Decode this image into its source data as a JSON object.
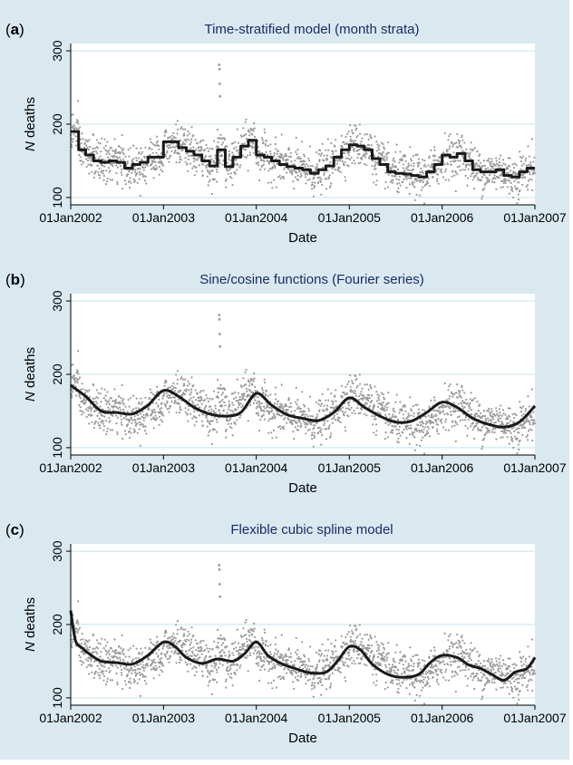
{
  "chart_data": [
    {
      "type": "scatter",
      "panel_label": "a",
      "title": "Time-stratified model (month strata)",
      "xlabel": "Date",
      "ylabel_italic": "N",
      "ylabel_rest": " deaths",
      "x_range": [
        "2002-01-01",
        "2007-01-01"
      ],
      "xticks": [
        "01Jan2002",
        "01Jan2003",
        "01Jan2004",
        "01Jan2005",
        "01Jan2006",
        "01Jan2007"
      ],
      "ylim": [
        90,
        310
      ],
      "yticks": [
        100,
        200,
        300
      ],
      "grid": true,
      "colors": {
        "points": "#9a9a9a",
        "fit": "#1a1a1a",
        "grid": "#c8e3ea",
        "plot_bg": "#ffffff"
      },
      "series": [
        {
          "kind": "points",
          "note": "daily death counts, approx. 1826 observations",
          "outliers": [
            {
              "x": "2003-08-08",
              "y": 281
            },
            {
              "x": "2003-08-09",
              "y": 275
            },
            {
              "x": "2003-08-10",
              "y": 255
            },
            {
              "x": "2003-08-11",
              "y": 238
            }
          ]
        },
        {
          "kind": "fit",
          "shape": "step",
          "x": [
            "2002-01",
            "2002-02",
            "2002-03",
            "2002-04",
            "2002-05",
            "2002-06",
            "2002-07",
            "2002-08",
            "2002-09",
            "2002-10",
            "2002-11",
            "2002-12",
            "2003-01",
            "2003-02",
            "2003-03",
            "2003-04",
            "2003-05",
            "2003-06",
            "2003-07",
            "2003-08",
            "2003-09",
            "2003-10",
            "2003-11",
            "2003-12",
            "2004-01",
            "2004-02",
            "2004-03",
            "2004-04",
            "2004-05",
            "2004-06",
            "2004-07",
            "2004-08",
            "2004-09",
            "2004-10",
            "2004-11",
            "2004-12",
            "2005-01",
            "2005-02",
            "2005-03",
            "2005-04",
            "2005-05",
            "2005-06",
            "2005-07",
            "2005-08",
            "2005-09",
            "2005-10",
            "2005-11",
            "2005-12",
            "2006-01",
            "2006-02",
            "2006-03",
            "2006-04",
            "2006-05",
            "2006-06",
            "2006-07",
            "2006-08",
            "2006-09",
            "2006-10",
            "2006-11",
            "2006-12"
          ],
          "y": [
            190,
            165,
            158,
            150,
            148,
            150,
            148,
            140,
            145,
            148,
            155,
            155,
            176,
            176,
            168,
            163,
            158,
            150,
            143,
            165,
            142,
            155,
            170,
            178,
            158,
            155,
            150,
            145,
            142,
            140,
            138,
            133,
            138,
            143,
            155,
            165,
            172,
            170,
            165,
            153,
            145,
            135,
            133,
            132,
            130,
            128,
            135,
            145,
            158,
            155,
            160,
            150,
            138,
            135,
            135,
            138,
            130,
            128,
            135,
            140
          ]
        }
      ]
    },
    {
      "type": "scatter",
      "panel_label": "b",
      "title": "Sine/cosine functions (Fourier series)",
      "xlabel": "Date",
      "ylabel_italic": "N",
      "ylabel_rest": " deaths",
      "x_range": [
        "2002-01-01",
        "2007-01-01"
      ],
      "xticks": [
        "01Jan2002",
        "01Jan2003",
        "01Jan2004",
        "01Jan2005",
        "01Jan2006",
        "01Jan2007"
      ],
      "ylim": [
        90,
        310
      ],
      "yticks": [
        100,
        200,
        300
      ],
      "grid": true,
      "colors": {
        "points": "#9a9a9a",
        "fit": "#1a1a1a",
        "grid": "#c8e3ea",
        "plot_bg": "#ffffff"
      },
      "series": [
        {
          "kind": "points",
          "note": "daily death counts, approx. 1826 observations",
          "outliers": [
            {
              "x": "2003-08-08",
              "y": 281
            },
            {
              "x": "2003-08-09",
              "y": 275
            },
            {
              "x": "2003-08-10",
              "y": 255
            },
            {
              "x": "2003-08-11",
              "y": 238
            }
          ]
        },
        {
          "kind": "fit",
          "shape": "smooth",
          "x": [
            "2002-01-01",
            "2002-03-01",
            "2002-05-01",
            "2002-07-01",
            "2002-09-01",
            "2002-11-01",
            "2003-01-01",
            "2003-03-01",
            "2003-05-01",
            "2003-07-01",
            "2003-09-01",
            "2003-11-01",
            "2004-01-01",
            "2004-03-01",
            "2004-05-01",
            "2004-07-01",
            "2004-09-01",
            "2004-11-01",
            "2005-01-01",
            "2005-03-01",
            "2005-05-01",
            "2005-07-01",
            "2005-09-01",
            "2005-11-01",
            "2006-01-01",
            "2006-03-01",
            "2006-05-01",
            "2006-07-01",
            "2006-09-01",
            "2006-11-01",
            "2007-01-01"
          ],
          "y": [
            185,
            170,
            150,
            148,
            146,
            158,
            178,
            170,
            155,
            146,
            143,
            148,
            174,
            158,
            145,
            140,
            137,
            148,
            168,
            155,
            143,
            135,
            136,
            148,
            162,
            155,
            140,
            132,
            128,
            135,
            157
          ]
        }
      ]
    },
    {
      "type": "scatter",
      "panel_label": "c",
      "title": "Flexible cubic spline model",
      "xlabel": "Date",
      "ylabel_italic": "N",
      "ylabel_rest": " deaths",
      "x_range": [
        "2002-01-01",
        "2007-01-01"
      ],
      "xticks": [
        "01Jan2002",
        "01Jan2003",
        "01Jan2004",
        "01Jan2005",
        "01Jan2006",
        "01Jan2007"
      ],
      "ylim": [
        90,
        310
      ],
      "yticks": [
        100,
        200,
        300
      ],
      "grid": true,
      "colors": {
        "points": "#9a9a9a",
        "fit": "#1a1a1a",
        "grid": "#c8e3ea",
        "plot_bg": "#ffffff"
      },
      "series": [
        {
          "kind": "points",
          "note": "daily death counts, approx. 1826 observations",
          "outliers": [
            {
              "x": "2003-08-08",
              "y": 281
            },
            {
              "x": "2003-08-09",
              "y": 275
            },
            {
              "x": "2003-08-10",
              "y": 255
            },
            {
              "x": "2003-08-11",
              "y": 238
            }
          ]
        },
        {
          "kind": "fit",
          "shape": "smooth",
          "x": [
            "2002-01-01",
            "2002-01-20",
            "2002-02-15",
            "2002-03-15",
            "2002-05-01",
            "2002-07-01",
            "2002-09-01",
            "2002-11-01",
            "2003-01-01",
            "2003-02-15",
            "2003-04-01",
            "2003-06-01",
            "2003-08-01",
            "2003-10-01",
            "2003-11-15",
            "2004-01-01",
            "2004-02-15",
            "2004-04-01",
            "2004-06-01",
            "2004-08-01",
            "2004-10-01",
            "2004-11-15",
            "2005-01-01",
            "2005-02-15",
            "2005-04-01",
            "2005-06-01",
            "2005-08-01",
            "2005-10-01",
            "2005-11-15",
            "2006-01-01",
            "2006-03-01",
            "2006-04-15",
            "2006-06-01",
            "2006-07-15",
            "2006-09-01",
            "2006-10-15",
            "2006-12-01",
            "2007-01-01"
          ],
          "y": [
            219,
            178,
            168,
            160,
            150,
            148,
            146,
            158,
            176,
            170,
            155,
            147,
            153,
            150,
            160,
            176,
            158,
            148,
            140,
            134,
            135,
            150,
            170,
            165,
            146,
            132,
            128,
            132,
            148,
            158,
            155,
            145,
            140,
            132,
            124,
            135,
            140,
            155
          ]
        }
      ]
    }
  ]
}
